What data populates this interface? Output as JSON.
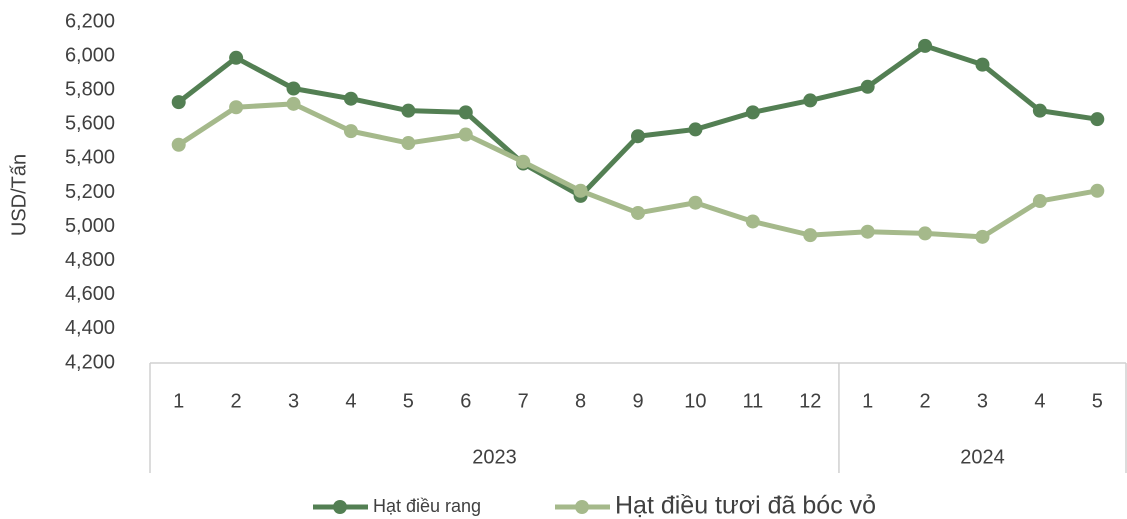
{
  "chart_data": {
    "type": "line",
    "y_label": "USD/Tấn",
    "categories": [
      "1",
      "2",
      "3",
      "4",
      "5",
      "6",
      "7",
      "8",
      "9",
      "10",
      "11",
      "12",
      "1",
      "2",
      "3",
      "4",
      "5"
    ],
    "category_groups": [
      {
        "label": "2023",
        "size": 12
      },
      {
        "label": "2024",
        "size": 5
      }
    ],
    "series": [
      {
        "name": "Hạt điều rang",
        "color": "#537f53",
        "values": [
          5730,
          5990,
          5810,
          5750,
          5680,
          5670,
          5370,
          5180,
          5530,
          5570,
          5670,
          5740,
          5820,
          6060,
          5950,
          5680,
          5630
        ]
      },
      {
        "name": "Hạt điều tươi đã bóc vỏ",
        "color": "#a5b98b",
        "values": [
          5480,
          5700,
          5720,
          5560,
          5490,
          5540,
          5380,
          5210,
          5080,
          5140,
          5030,
          4950,
          4970,
          4960,
          4940,
          5150,
          5210
        ]
      }
    ],
    "ylim": [
      4200,
      6200
    ],
    "yticks": [
      {
        "value": 4200,
        "label": "4,200"
      },
      {
        "value": 4400,
        "label": "4,400"
      },
      {
        "value": 4600,
        "label": "4,600"
      },
      {
        "value": 4800,
        "label": "4,800"
      },
      {
        "value": 5000,
        "label": "5,000"
      },
      {
        "value": 5200,
        "label": "5,200"
      },
      {
        "value": 5400,
        "label": "5,400"
      },
      {
        "value": 5600,
        "label": "5,600"
      },
      {
        "value": 5800,
        "label": "5,800"
      },
      {
        "value": 6000,
        "label": "6,000"
      },
      {
        "value": 6200,
        "label": "6,200"
      }
    ],
    "grid": false,
    "legend": "bottom"
  }
}
